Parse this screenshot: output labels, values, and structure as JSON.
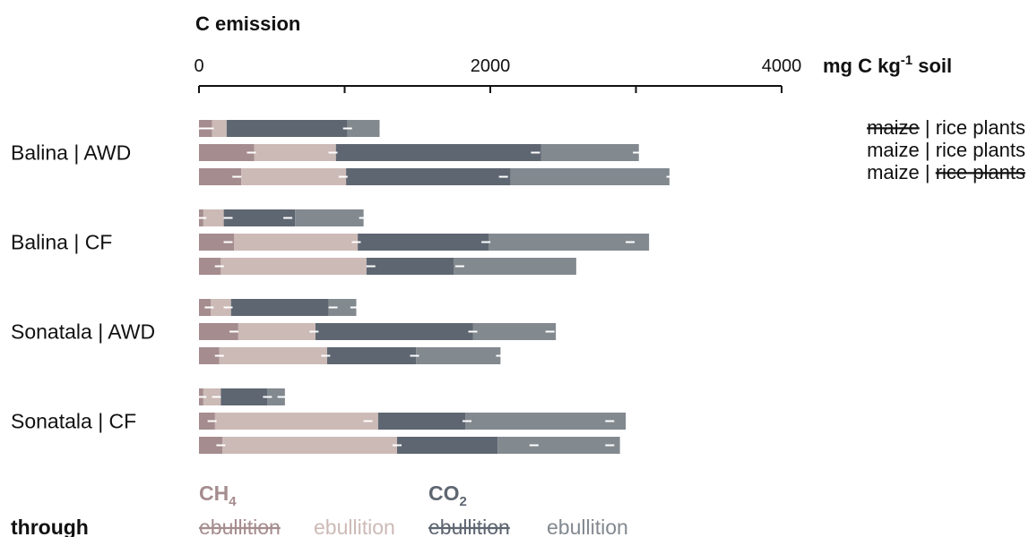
{
  "chart_data": {
    "type": "bar",
    "stacked": true,
    "orientation": "horizontal",
    "title": "C emission",
    "unit_label": {
      "pre": "mg C kg",
      "sup": "-1",
      "post": " soil"
    },
    "xlim": [
      0,
      4000
    ],
    "x_ticks": [
      0,
      1000,
      2000,
      3000,
      4000
    ],
    "x_tick_labels": [
      "0",
      "",
      "2000",
      "",
      "4000"
    ],
    "groups": [
      "Balina | AWD",
      "Balina | CF",
      "Sonatala | AWD",
      "Sonatala | CF"
    ],
    "treatments": [
      {
        "a": "maize",
        "sep": " | ",
        "b": "rice plants",
        "strike_a": true,
        "strike_b": false
      },
      {
        "a": "maize",
        "sep": " | ",
        "b": "rice plants",
        "strike_a": false,
        "strike_b": false
      },
      {
        "a": "maize",
        "sep": " | ",
        "b": "rice plants",
        "strike_a": false,
        "strike_b": true
      }
    ],
    "series": [
      {
        "gas": "CH4",
        "label": "ebullition",
        "strike": true,
        "color": "#a58c8e"
      },
      {
        "gas": "CH4",
        "label": "ebullition",
        "strike": false,
        "color": "#ccbab6"
      },
      {
        "gas": "CO2",
        "label": "ebullition",
        "strike": true,
        "color": "#5e6671"
      },
      {
        "gas": "CO2",
        "label": "ebullition",
        "strike": false,
        "color": "#82898f"
      }
    ],
    "values": [
      [
        [
          90,
          100,
          830,
          220
        ],
        [
          380,
          560,
          1410,
          670
        ],
        [
          290,
          720,
          1130,
          1090
        ]
      ],
      [
        [
          30,
          140,
          490,
          470
        ],
        [
          240,
          850,
          900,
          1100
        ],
        [
          150,
          1000,
          600,
          840
        ]
      ],
      [
        [
          80,
          140,
          670,
          190
        ],
        [
          270,
          530,
          1080,
          570
        ],
        [
          140,
          740,
          610,
          580
        ]
      ],
      [
        [
          30,
          120,
          320,
          120
        ],
        [
          110,
          1120,
          600,
          1100
        ],
        [
          160,
          1200,
          690,
          840
        ]
      ]
    ],
    "error_values": [
      [
        [
          70,
          20,
          1020,
          1270
        ],
        [
          360,
          920,
          2310,
          3010
        ],
        [
          260,
          990,
          2090,
          3240
        ]
      ],
      [
        [
          20,
          200,
          610,
          1130
        ],
        [
          200,
          1080,
          1970,
          2960
        ],
        [
          140,
          1180,
          1790,
          2630
        ]
      ],
      [
        [
          70,
          200,
          920,
          1070
        ],
        [
          240,
          790,
          1880,
          2410
        ],
        [
          140,
          870,
          1480,
          2070
        ]
      ],
      [
        [
          20,
          120,
          470,
          570
        ],
        [
          90,
          1160,
          1840,
          2820
        ],
        [
          150,
          1360,
          2300,
          2820
        ]
      ]
    ],
    "legend": {
      "ch4_label": {
        "base": "CH",
        "sub": "4"
      },
      "co2_label": {
        "base": "CO",
        "sub": "2"
      },
      "through_label": "through"
    },
    "grid": false
  }
}
